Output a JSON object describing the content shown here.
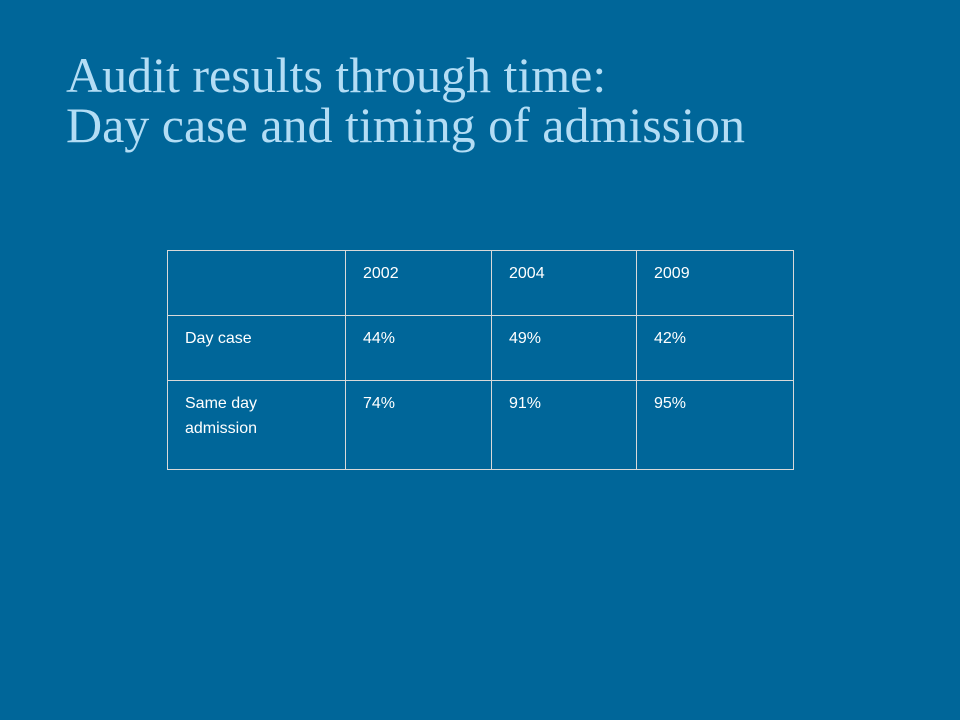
{
  "slide": {
    "title_line1": "Audit results through time:",
    "title_line2": "Day case and timing of admission",
    "background_color": "#006699",
    "title_color": "#b3ddf5"
  },
  "table": {
    "header": [
      "",
      "2002",
      "2004",
      "2009"
    ],
    "rows": [
      {
        "label": "Day case",
        "values": [
          "44%",
          "49%",
          "42%"
        ]
      },
      {
        "label": "Same day admission",
        "values": [
          "74%",
          "91%",
          "95%"
        ]
      }
    ]
  }
}
